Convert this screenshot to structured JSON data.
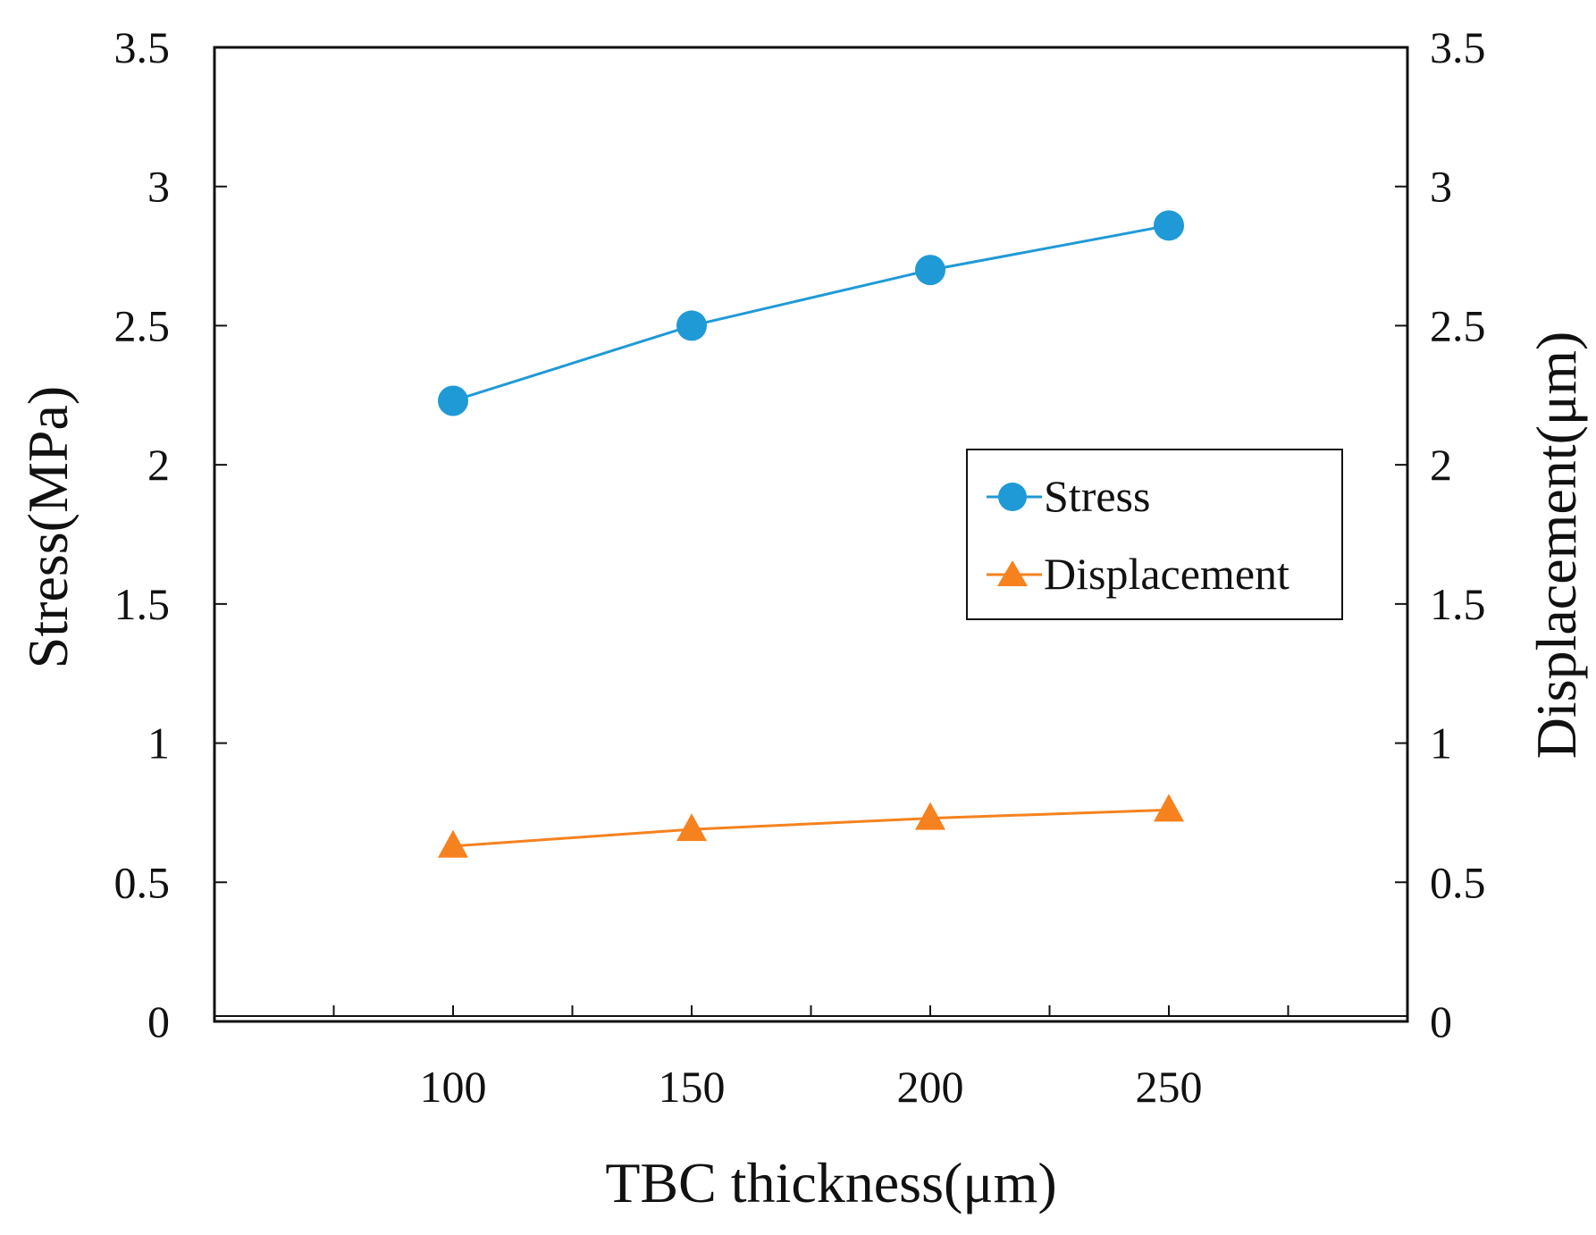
{
  "chart_data": {
    "type": "line",
    "x": [
      100,
      150,
      200,
      250
    ],
    "xlabel": "TBC thickness(μm)",
    "ylabel_left": "Stress(MPa)",
    "ylabel_right": "Displacement(μm)",
    "xlim": [
      50,
      300
    ],
    "ylim_left": [
      0,
      3.5
    ],
    "ylim_right": [
      0,
      3.5
    ],
    "x_ticks": [
      100,
      150,
      200,
      250
    ],
    "x_tick_labels": [
      "100",
      "150",
      "200",
      "250"
    ],
    "x_minor_ticks": [
      75,
      100,
      125,
      150,
      175,
      200,
      225,
      250,
      275
    ],
    "y_ticks": [
      0,
      0.5,
      1,
      1.5,
      2,
      2.5,
      3,
      3.5
    ],
    "y_tick_labels": [
      "0",
      "0.5",
      "1",
      "1.5",
      "2",
      "2.5",
      "3",
      "3.5"
    ],
    "grid": false,
    "legend_position": "center-right",
    "series": [
      {
        "name": "Stress",
        "axis": "left",
        "marker": "circle",
        "color": "#1f9ad6",
        "values": [
          2.23,
          2.5,
          2.7,
          2.86
        ]
      },
      {
        "name": "Displacement",
        "axis": "right",
        "marker": "triangle",
        "color": "#f5821f",
        "values": [
          0.63,
          0.69,
          0.73,
          0.76
        ]
      }
    ]
  }
}
